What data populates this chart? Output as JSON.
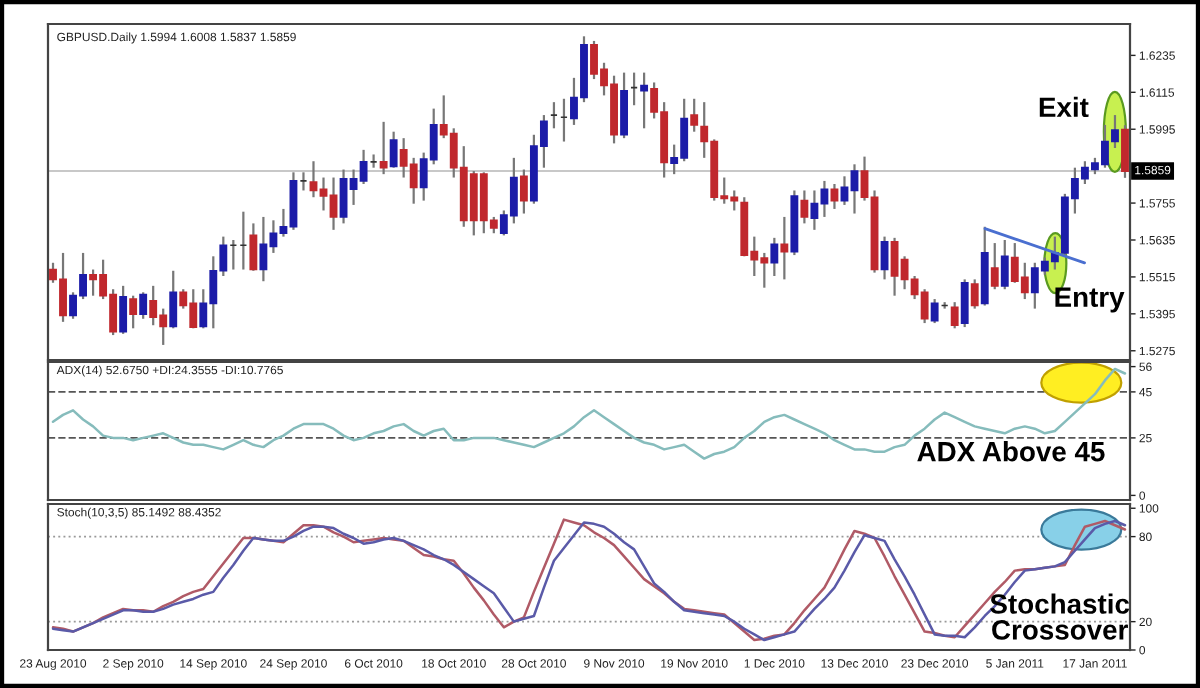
{
  "chart_data": [
    {
      "type": "candlestick",
      "title": "GBPUSD.Daily 1.5994 1.6008 1.5837 1.5859",
      "tick_labels": "y",
      "categories": [
        null,
        null,
        null,
        null,
        null,
        null,
        null,
        null,
        null,
        null,
        null,
        null,
        null,
        null,
        null,
        null,
        null,
        null,
        null,
        null,
        null,
        null,
        null,
        null,
        null,
        null,
        null,
        null,
        null,
        null,
        null,
        null,
        null,
        null,
        null,
        null,
        null,
        null,
        null,
        null,
        null,
        null,
        null,
        null,
        null,
        null,
        null,
        null,
        null,
        null,
        null,
        null,
        null,
        null,
        null,
        null,
        null,
        null,
        null,
        null,
        null,
        null,
        null,
        null,
        null,
        null,
        null,
        null,
        null,
        null,
        null,
        null,
        null,
        null,
        null,
        null,
        null,
        null,
        null,
        null,
        null,
        null,
        null,
        null,
        null,
        null,
        null,
        null,
        null,
        null,
        null,
        null,
        null,
        null,
        null,
        null,
        null,
        null,
        null,
        null,
        null,
        null,
        null,
        null,
        null,
        null,
        null,
        null
      ],
      "ohlc": [
        [
          1.5539,
          1.5561,
          1.5496,
          1.5507
        ],
        [
          1.5507,
          1.5593,
          1.5369,
          1.539
        ],
        [
          1.539,
          1.5465,
          1.5379,
          1.5454
        ],
        [
          1.5454,
          1.5593,
          1.5443,
          1.5522
        ],
        [
          1.5522,
          1.5539,
          1.5454,
          1.5507
        ],
        [
          1.5522,
          1.5571,
          1.5443,
          1.5454
        ],
        [
          1.5458,
          1.5475,
          1.5326,
          1.5337
        ],
        [
          1.5337,
          1.5486,
          1.533,
          1.545
        ],
        [
          1.5443,
          1.5454,
          1.5348,
          1.5394
        ],
        [
          1.5394,
          1.5465,
          1.5379,
          1.5458
        ],
        [
          1.5437,
          1.5486,
          1.5358,
          1.5384
        ],
        [
          1.539,
          1.5412,
          1.5294,
          1.5354
        ],
        [
          1.5354,
          1.5535,
          1.5348,
          1.5465
        ],
        [
          1.5465,
          1.5475,
          1.5412,
          1.5422
        ],
        [
          1.5429,
          1.5475,
          1.5348,
          1.5352
        ],
        [
          1.5354,
          1.5475,
          1.5348,
          1.5429
        ],
        [
          1.5429,
          1.5582,
          1.5348,
          1.5535
        ],
        [
          1.5535,
          1.5646,
          1.5518,
          1.5618
        ],
        [
          1.5618,
          1.5635,
          1.5539,
          1.5618
        ],
        [
          1.5618,
          1.5727,
          1.5539,
          1.5618
        ],
        [
          1.565,
          1.5689,
          1.5535,
          1.5539
        ],
        [
          1.5539,
          1.571,
          1.5501,
          1.5621
        ],
        [
          1.5614,
          1.5699,
          1.5593,
          1.5657
        ],
        [
          1.5657,
          1.5736,
          1.5646,
          1.5678
        ],
        [
          1.5678,
          1.5855,
          1.5668,
          1.5827
        ],
        [
          1.5827,
          1.5855,
          1.5796,
          1.5827
        ],
        [
          1.5823,
          1.5891,
          1.5774,
          1.5796
        ],
        [
          1.58,
          1.5838,
          1.5731,
          1.5778
        ],
        [
          1.578,
          1.5838,
          1.5668,
          1.571
        ],
        [
          1.571,
          1.5864,
          1.5689,
          1.5834
        ],
        [
          1.58,
          1.5864,
          1.5749,
          1.5834
        ],
        [
          1.5827,
          1.5928,
          1.5817,
          1.5889
        ],
        [
          1.5889,
          1.5913,
          1.587,
          1.5889
        ],
        [
          1.5889,
          1.6019,
          1.5849,
          1.587
        ],
        [
          1.5874,
          1.5987,
          1.587,
          1.596
        ],
        [
          1.5928,
          1.5966,
          1.5838,
          1.5876
        ],
        [
          1.5881,
          1.5902,
          1.5753,
          1.5806
        ],
        [
          1.5806,
          1.5919,
          1.5763,
          1.5898
        ],
        [
          1.5896,
          1.6062,
          1.5881,
          1.6009
        ],
        [
          1.6009,
          1.6105,
          1.5966,
          1.5977
        ],
        [
          1.5981,
          1.5998,
          1.5838,
          1.587
        ],
        [
          1.587,
          1.594,
          1.5678,
          1.5699
        ],
        [
          1.5849,
          1.5859,
          1.565,
          1.5699
        ],
        [
          1.5849,
          1.5855,
          1.5657,
          1.5699
        ],
        [
          1.5699,
          1.571,
          1.5657,
          1.5674
        ],
        [
          1.5657,
          1.5731,
          1.565,
          1.5716
        ],
        [
          1.5714,
          1.5902,
          1.5689,
          1.5838
        ],
        [
          1.5842,
          1.5864,
          1.5721,
          1.5763
        ],
        [
          1.5763,
          1.5977,
          1.5753,
          1.594
        ],
        [
          1.594,
          1.6041,
          1.587,
          1.6021
        ],
        [
          1.6041,
          1.6083,
          1.5998,
          1.6041
        ],
        [
          1.6034,
          1.6094,
          1.5955,
          1.6034
        ],
        [
          1.603,
          1.6162,
          1.6009,
          1.6098
        ],
        [
          1.6098,
          1.6297,
          1.6083,
          1.6269
        ],
        [
          1.6269,
          1.6282,
          1.6158,
          1.6175
        ],
        [
          1.619,
          1.6211,
          1.6105,
          1.6137
        ],
        [
          1.6141,
          1.6169,
          1.5949,
          1.5977
        ],
        [
          1.5977,
          1.6179,
          1.5966,
          1.612
        ],
        [
          1.613,
          1.6179,
          1.6073,
          1.613
        ],
        [
          1.612,
          1.6179,
          1.5998,
          1.6137
        ],
        [
          1.6126,
          1.6147,
          1.603,
          1.6051
        ],
        [
          1.6051,
          1.6083,
          1.5838,
          1.5887
        ],
        [
          1.5885,
          1.5945,
          1.5849,
          1.5902
        ],
        [
          1.5902,
          1.6094,
          1.5891,
          1.603
        ],
        [
          1.6041,
          1.6094,
          1.5987,
          1.6009
        ],
        [
          1.6004,
          1.6083,
          1.5902,
          1.5955
        ],
        [
          1.5955,
          1.5962,
          1.5763,
          1.5774
        ],
        [
          1.5778,
          1.5838,
          1.5753,
          1.577
        ],
        [
          1.5774,
          1.5796,
          1.5731,
          1.5763
        ],
        [
          1.5757,
          1.5774,
          1.5582,
          1.5586
        ],
        [
          1.5597,
          1.5646,
          1.5518,
          1.5571
        ],
        [
          1.5576,
          1.5593,
          1.548,
          1.5561
        ],
        [
          1.5561,
          1.5642,
          1.5518,
          1.5621
        ],
        [
          1.5621,
          1.571,
          1.5507,
          1.5597
        ],
        [
          1.5597,
          1.5796,
          1.5586,
          1.5778
        ],
        [
          1.5763,
          1.5796,
          1.5689,
          1.571
        ],
        [
          1.5706,
          1.5796,
          1.5668,
          1.5753
        ],
        [
          1.5753,
          1.5827,
          1.571,
          1.58
        ],
        [
          1.58,
          1.5817,
          1.5736,
          1.5763
        ],
        [
          1.5763,
          1.5842,
          1.5749,
          1.5806
        ],
        [
          1.5796,
          1.5881,
          1.5721,
          1.5859
        ],
        [
          1.5859,
          1.5906,
          1.5763,
          1.5774
        ],
        [
          1.5774,
          1.5796,
          1.5529,
          1.5539
        ],
        [
          1.5539,
          1.5646,
          1.5507,
          1.5629
        ],
        [
          1.5629,
          1.5642,
          1.5454,
          1.5518
        ],
        [
          1.5571,
          1.5582,
          1.5475,
          1.5507
        ],
        [
          1.5507,
          1.5518,
          1.5443,
          1.5458
        ],
        [
          1.5465,
          1.5475,
          1.5365,
          1.5379
        ],
        [
          1.5373,
          1.5443,
          1.5365,
          1.5429
        ],
        [
          1.5422,
          1.5433,
          1.5412,
          1.5422
        ],
        [
          1.5416,
          1.5433,
          1.5348,
          1.5358
        ],
        [
          1.5365,
          1.5507,
          1.5352,
          1.5496
        ],
        [
          1.5492,
          1.5507,
          1.5412,
          1.5422
        ],
        [
          1.5429,
          1.5678,
          1.5422,
          1.5593
        ],
        [
          1.5544,
          1.5625,
          1.5475,
          1.5486
        ],
        [
          1.5486,
          1.5635,
          1.5475,
          1.5582
        ],
        [
          1.5578,
          1.5625,
          1.5496,
          1.5501
        ],
        [
          1.5514,
          1.5561,
          1.5443,
          1.5465
        ],
        [
          1.5465,
          1.5561,
          1.5412,
          1.5544
        ],
        [
          1.5535,
          1.5578,
          1.5522,
          1.5565
        ],
        [
          1.5565,
          1.5646,
          1.5539,
          1.5593
        ],
        [
          1.5593,
          1.5785,
          1.5582,
          1.5774
        ],
        [
          1.577,
          1.587,
          1.5721,
          1.5834
        ],
        [
          1.5834,
          1.5891,
          1.5817,
          1.587
        ],
        [
          1.5864,
          1.5902,
          1.5849,
          1.5885
        ],
        [
          1.5881,
          1.6009,
          1.587,
          1.5955
        ],
        [
          1.5955,
          1.6041,
          1.5934,
          1.5992
        ],
        [
          1.5994,
          1.6008,
          1.5837,
          1.5859
        ]
      ],
      "colors": [
        "#c0282d",
        "#c0282d",
        "#1c1ca8",
        "#1c1ca8",
        "#c0282d",
        "#c0282d",
        "#c0282d",
        "#1c1ca8",
        "#c0282d",
        "#1c1ca8",
        "#c0282d",
        "#c0282d",
        "#1c1ca8",
        "#c0282d",
        "#c0282d",
        "#1c1ca8",
        "#1c1ca8",
        "#1c1ca8",
        "#333333",
        "#333333",
        "#c0282d",
        "#1c1ca8",
        "#1c1ca8",
        "#1c1ca8",
        "#1c1ca8",
        "#333333",
        "#c0282d",
        "#c0282d",
        "#c0282d",
        "#1c1ca8",
        "#1c1ca8",
        "#1c1ca8",
        "#333333",
        "#c0282d",
        "#1c1ca8",
        "#c0282d",
        "#c0282d",
        "#1c1ca8",
        "#1c1ca8",
        "#c0282d",
        "#c0282d",
        "#c0282d",
        "#c0282d",
        "#c0282d",
        "#c0282d",
        "#1c1ca8",
        "#1c1ca8",
        "#c0282d",
        "#1c1ca8",
        "#1c1ca8",
        "#333333",
        "#333333",
        "#1c1ca8",
        "#1c1ca8",
        "#c0282d",
        "#c0282d",
        "#c0282d",
        "#1c1ca8",
        "#333333",
        "#1c1ca8",
        "#c0282d",
        "#c0282d",
        "#1c1ca8",
        "#1c1ca8",
        "#c0282d",
        "#c0282d",
        "#c0282d",
        "#c0282d",
        "#c0282d",
        "#c0282d",
        "#c0282d",
        "#c0282d",
        "#1c1ca8",
        "#c0282d",
        "#1c1ca8",
        "#c0282d",
        "#1c1ca8",
        "#1c1ca8",
        "#c0282d",
        "#1c1ca8",
        "#1c1ca8",
        "#c0282d",
        "#c0282d",
        "#1c1ca8",
        "#c0282d",
        "#c0282d",
        "#c0282d",
        "#c0282d",
        "#1c1ca8",
        "#333333",
        "#c0282d",
        "#1c1ca8",
        "#c0282d",
        "#1c1ca8",
        "#c0282d",
        "#1c1ca8",
        "#c0282d",
        "#c0282d",
        "#1c1ca8",
        "#1c1ca8",
        "#1c1ca8",
        "#1c1ca8",
        "#1c1ca8",
        "#1c1ca8",
        "#1c1ca8",
        "#1c1ca8",
        "#1c1ca8",
        "#c0282d"
      ],
      "ylim": [
        1.5245,
        1.6337
      ],
      "yticks": [
        1.5275,
        1.5395,
        1.5515,
        1.5635,
        1.5755,
        1.5995,
        1.6115,
        1.6235
      ],
      "ref_lines": [
        {
          "axis": "y",
          "value": 1.5859,
          "label": "1.5859",
          "color": "#c8c8c8",
          "line_style": "solid"
        }
      ],
      "annotations": [
        "Exit",
        "Entry"
      ]
    },
    {
      "type": "line",
      "title": "ADX(14) 52.6750 +DI:24.3555 -DI:10.7765",
      "tick_labels": "y",
      "categories": [
        null,
        null,
        null,
        null,
        null,
        null,
        null,
        null,
        null,
        null,
        null,
        null,
        null,
        null,
        null,
        null,
        null,
        null,
        null,
        null,
        null,
        null,
        null,
        null,
        null,
        null,
        null,
        null,
        null,
        null,
        null,
        null,
        null,
        null,
        null,
        null,
        null,
        null,
        null,
        null,
        null,
        null,
        null,
        null,
        null,
        null,
        null,
        null,
        null,
        null,
        null,
        null,
        null,
        null,
        null,
        null,
        null,
        null,
        null,
        null,
        null,
        null,
        null,
        null,
        null,
        null,
        null,
        null,
        null,
        null,
        null,
        null,
        null,
        null,
        null,
        null,
        null,
        null,
        null,
        null,
        null,
        null,
        null,
        null,
        null,
        null,
        null,
        null,
        null,
        null,
        null,
        null,
        null,
        null,
        null,
        null,
        null,
        null,
        null,
        null,
        null,
        null,
        null,
        null,
        null,
        null,
        null,
        null
      ],
      "series": [
        {
          "color": "#86bcbc",
          "values": [
            32,
            35,
            37,
            33,
            30,
            26,
            25,
            25,
            24,
            25,
            26,
            27,
            25,
            23,
            22,
            22,
            21,
            20,
            22,
            24,
            22,
            21,
            24,
            26,
            29,
            31,
            31,
            31,
            29,
            26,
            24,
            25,
            27,
            28,
            30,
            31,
            28,
            26,
            28,
            29,
            24,
            24,
            25,
            25,
            25,
            24,
            23,
            22,
            21,
            23,
            25,
            27,
            30,
            34,
            37,
            34,
            31,
            28,
            25,
            23,
            22,
            20,
            21,
            22,
            19,
            16,
            18,
            19,
            21,
            25,
            28,
            32,
            34,
            35,
            33,
            31,
            29,
            27,
            24,
            22,
            20,
            20,
            19,
            19,
            21,
            22,
            26,
            29,
            33,
            36,
            34,
            32,
            30,
            29,
            28,
            27,
            29,
            30,
            29,
            27,
            28,
            32,
            36,
            40,
            44,
            50,
            55,
            53
          ]
        }
      ],
      "ylim": [
        -2,
        58
      ],
      "yticks": [
        0,
        25,
        45,
        56
      ],
      "ref_lines": [
        {
          "axis": "y",
          "value": 25,
          "label": null,
          "color": "#555555",
          "line_style": "dashed"
        },
        {
          "axis": "y",
          "value": 45,
          "label": null,
          "color": "#555555",
          "line_style": "dashed"
        }
      ],
      "annotations": [
        "ADX Above 45"
      ]
    },
    {
      "type": "line",
      "title": "Stoch(10,3,5) 85.1492 88.4352",
      "categories": [
        "23 Aug 2010",
        null,
        null,
        null,
        null,
        null,
        null,
        null,
        "2 Sep 2010",
        null,
        null,
        null,
        null,
        null,
        null,
        null,
        "14 Sep 2010",
        null,
        null,
        null,
        null,
        null,
        null,
        null,
        "24 Sep 2010",
        null,
        null,
        null,
        null,
        null,
        null,
        null,
        "6 Oct 2010",
        null,
        null,
        null,
        null,
        null,
        null,
        null,
        "18 Oct 2010",
        null,
        null,
        null,
        null,
        null,
        null,
        null,
        "28 Oct 2010",
        null,
        null,
        null,
        null,
        null,
        null,
        null,
        "9 Nov 2010",
        null,
        null,
        null,
        null,
        null,
        null,
        null,
        "19 Nov 2010",
        null,
        null,
        null,
        null,
        null,
        null,
        null,
        "1 Dec 2010",
        null,
        null,
        null,
        null,
        null,
        null,
        null,
        "13 Dec 2010",
        null,
        null,
        null,
        null,
        null,
        null,
        null,
        "23 Dec 2010",
        null,
        null,
        null,
        null,
        null,
        null,
        null,
        "5 Jan 2011",
        null,
        null,
        null,
        null,
        null,
        null,
        null,
        "17 Jan 2011",
        null,
        null,
        null
      ],
      "series": [
        {
          "color": "#b05a66",
          "values": [
            16,
            15,
            13,
            16,
            19,
            23,
            26,
            29,
            28,
            28,
            27,
            31,
            34,
            38,
            41,
            43,
            52,
            61,
            70,
            79,
            79,
            78,
            77,
            76,
            82,
            88,
            88,
            87,
            83,
            80,
            76,
            77,
            78,
            79,
            78,
            77,
            72,
            67,
            66,
            64,
            63,
            54,
            44,
            35,
            25,
            16,
            20,
            23,
            41,
            58,
            75,
            92,
            90,
            88,
            83,
            79,
            74,
            66,
            58,
            50,
            45,
            40,
            34,
            29,
            28,
            27,
            26,
            25,
            19,
            13,
            7,
            8,
            10,
            11,
            19,
            28,
            36,
            44,
            57,
            71,
            84,
            82,
            79,
            66,
            52,
            39,
            26,
            13,
            12,
            10,
            9,
            17,
            25,
            33,
            41,
            48,
            56,
            57,
            57,
            58,
            59,
            60,
            74,
            87,
            89,
            91,
            88,
            85
          ]
        },
        {
          "color": "#5a5aa8",
          "values": [
            15,
            14,
            13,
            16,
            19,
            22,
            25,
            28,
            28,
            27,
            27,
            29,
            32,
            34,
            36,
            39,
            41,
            51,
            60,
            70,
            79,
            78,
            77,
            77,
            80,
            84,
            87,
            87,
            86,
            82,
            79,
            75,
            76,
            78,
            79,
            77,
            74,
            71,
            67,
            64,
            60,
            55,
            50,
            45,
            40,
            30,
            20,
            22,
            24,
            44,
            63,
            72,
            81,
            90,
            89,
            87,
            82,
            76,
            71,
            59,
            47,
            41,
            34,
            28,
            27,
            26,
            25,
            24,
            20,
            15,
            11,
            7,
            9,
            11,
            13,
            21,
            29,
            36,
            44,
            56,
            69,
            81,
            79,
            77,
            64,
            52,
            39,
            25,
            11,
            10,
            10,
            9,
            16,
            24,
            31,
            39,
            48,
            56,
            57,
            58,
            59,
            62,
            70,
            78,
            86,
            89,
            91,
            88
          ]
        }
      ],
      "ylim": [
        0,
        103
      ],
      "yticks": [
        0,
        20,
        80,
        100
      ],
      "ref_lines": [
        {
          "axis": "y",
          "value": 20,
          "label": null,
          "color": "#999999",
          "line_style": "dotted"
        },
        {
          "axis": "y",
          "value": 80,
          "label": null,
          "color": "#999999",
          "line_style": "dotted"
        }
      ],
      "annotations": [
        "Stochastic\nCrossover"
      ]
    }
  ]
}
